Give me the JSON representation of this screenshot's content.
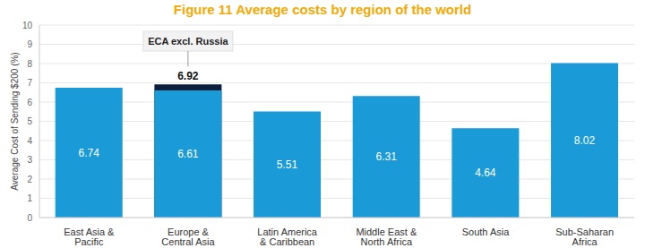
{
  "chart_data": {
    "type": "bar",
    "title": "Figure 11 Average costs by region of the world",
    "ylabel": "Average Cost of Sending $200 (%)",
    "categories": [
      "East Asia & Pacific",
      "Europe & Central Asia",
      "Latin America & Caribbean",
      "Middle East & North Africa",
      "South Asia",
      "Sub-Saharan Africa"
    ],
    "series": [
      {
        "values": [
          6.74,
          6.61,
          5.51,
          6.31,
          4.64,
          8.02
        ],
        "color": "#1a9ad6"
      },
      {
        "name": "ECA excl. Russia",
        "values": [
          null,
          6.92,
          null,
          null,
          null,
          null
        ],
        "color": "#0d1f3c"
      }
    ],
    "ylim": [
      0,
      10
    ],
    "yticks": [
      0,
      1,
      2,
      3,
      4,
      5,
      6,
      7,
      8,
      9,
      10
    ],
    "grid": true,
    "data_labels": true
  }
}
